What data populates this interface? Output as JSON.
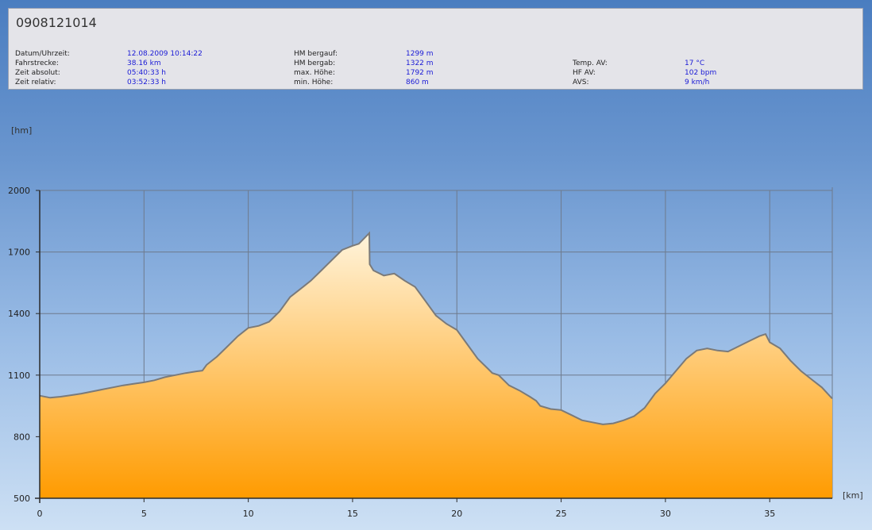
{
  "title": "0908121014",
  "stats": [
    {
      "label": "Datum/Uhrzeit:",
      "value": "12.08.2009 10:14:22"
    },
    {
      "label": "Fahrstrecke:",
      "value": "38.16 km"
    },
    {
      "label": "Zeit absolut:",
      "value": "05:40:33 h"
    },
    {
      "label": "Zeit relativ:",
      "value": "03:52:33 h"
    },
    {
      "label": "HM bergauf:",
      "value": "1299 m"
    },
    {
      "label": "HM bergab:",
      "value": "1322 m"
    },
    {
      "label": "max. Höhe:",
      "value": "1792 m"
    },
    {
      "label": "min. Höhe:",
      "value": "860 m"
    },
    {
      "label": "Temp. AV:",
      "value": "17 °C"
    },
    {
      "label": "HF AV:",
      "value": "102 bpm"
    },
    {
      "label": "AVS:",
      "value": "9 km/h"
    }
  ],
  "chart_data": {
    "type": "area",
    "ylabel": "[hm]",
    "xlabel": "[km]",
    "xlim": [
      0,
      38
    ],
    "ylim": [
      500,
      2000
    ],
    "xticks": [
      0,
      5,
      10,
      15,
      20,
      25,
      30,
      35
    ],
    "yticks": [
      500,
      800,
      1100,
      1400,
      1700,
      2000
    ],
    "grid": true,
    "fill_top_color": "#fff4dc",
    "fill_bottom_color": "#ff9b00",
    "line_color": "#7a7a7a",
    "x": [
      0,
      0.5,
      1,
      1.5,
      2,
      2.5,
      3,
      3.5,
      4,
      4.5,
      5,
      5.5,
      6,
      6.5,
      7,
      7.5,
      7.8,
      8,
      8.5,
      9,
      9.5,
      10,
      10.5,
      11,
      11.5,
      12,
      12.5,
      13,
      13.5,
      14,
      14.5,
      15,
      15.3,
      15.8,
      15.82,
      16,
      16.5,
      17,
      17.5,
      18,
      18.5,
      19,
      19.5,
      20,
      20.5,
      21,
      21.5,
      21.7,
      22,
      22.5,
      23,
      23.5,
      23.8,
      24,
      24.5,
      25,
      25.5,
      26,
      26.5,
      27,
      27.5,
      28,
      28.5,
      29,
      29.5,
      30,
      30.5,
      31,
      31.5,
      32,
      32.5,
      33,
      33.5,
      34,
      34.5,
      34.8,
      35,
      35.5,
      36,
      36.5,
      37,
      37.5,
      38
    ],
    "y": [
      1000,
      990,
      995,
      1002,
      1010,
      1020,
      1030,
      1040,
      1050,
      1058,
      1065,
      1075,
      1090,
      1100,
      1110,
      1118,
      1122,
      1150,
      1190,
      1240,
      1290,
      1330,
      1340,
      1360,
      1410,
      1480,
      1520,
      1560,
      1610,
      1660,
      1710,
      1730,
      1740,
      1792,
      1640,
      1610,
      1585,
      1595,
      1560,
      1530,
      1460,
      1390,
      1350,
      1320,
      1250,
      1180,
      1130,
      1110,
      1100,
      1050,
      1025,
      995,
      975,
      950,
      935,
      930,
      905,
      880,
      870,
      860,
      865,
      880,
      900,
      940,
      1010,
      1060,
      1120,
      1180,
      1220,
      1230,
      1220,
      1215,
      1240,
      1265,
      1290,
      1300,
      1260,
      1230,
      1170,
      1120,
      1080,
      1040,
      985
    ]
  }
}
